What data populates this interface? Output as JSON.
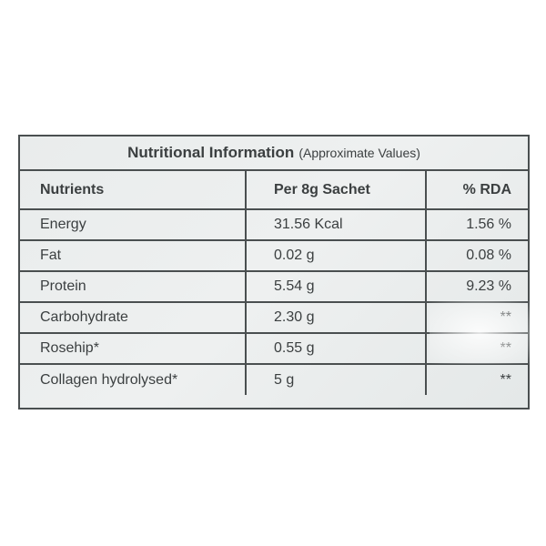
{
  "title": {
    "bold": "Nutritional Information",
    "note": "(Approximate Values)"
  },
  "columns": [
    "Nutrients",
    "Per 8g Sachet",
    "% RDA"
  ],
  "rows": [
    [
      "Energy",
      "31.56 Kcal",
      "1.56 %"
    ],
    [
      "Fat",
      "0.02 g",
      "0.08 %"
    ],
    [
      "Protein",
      "5.54 g",
      "9.23 %"
    ],
    [
      "Carbohydrate",
      "2.30 g",
      "**"
    ],
    [
      "Rosehip*",
      "0.55 g",
      "**"
    ],
    [
      "Collagen hydrolysed*",
      "5 g",
      "**"
    ]
  ]
}
